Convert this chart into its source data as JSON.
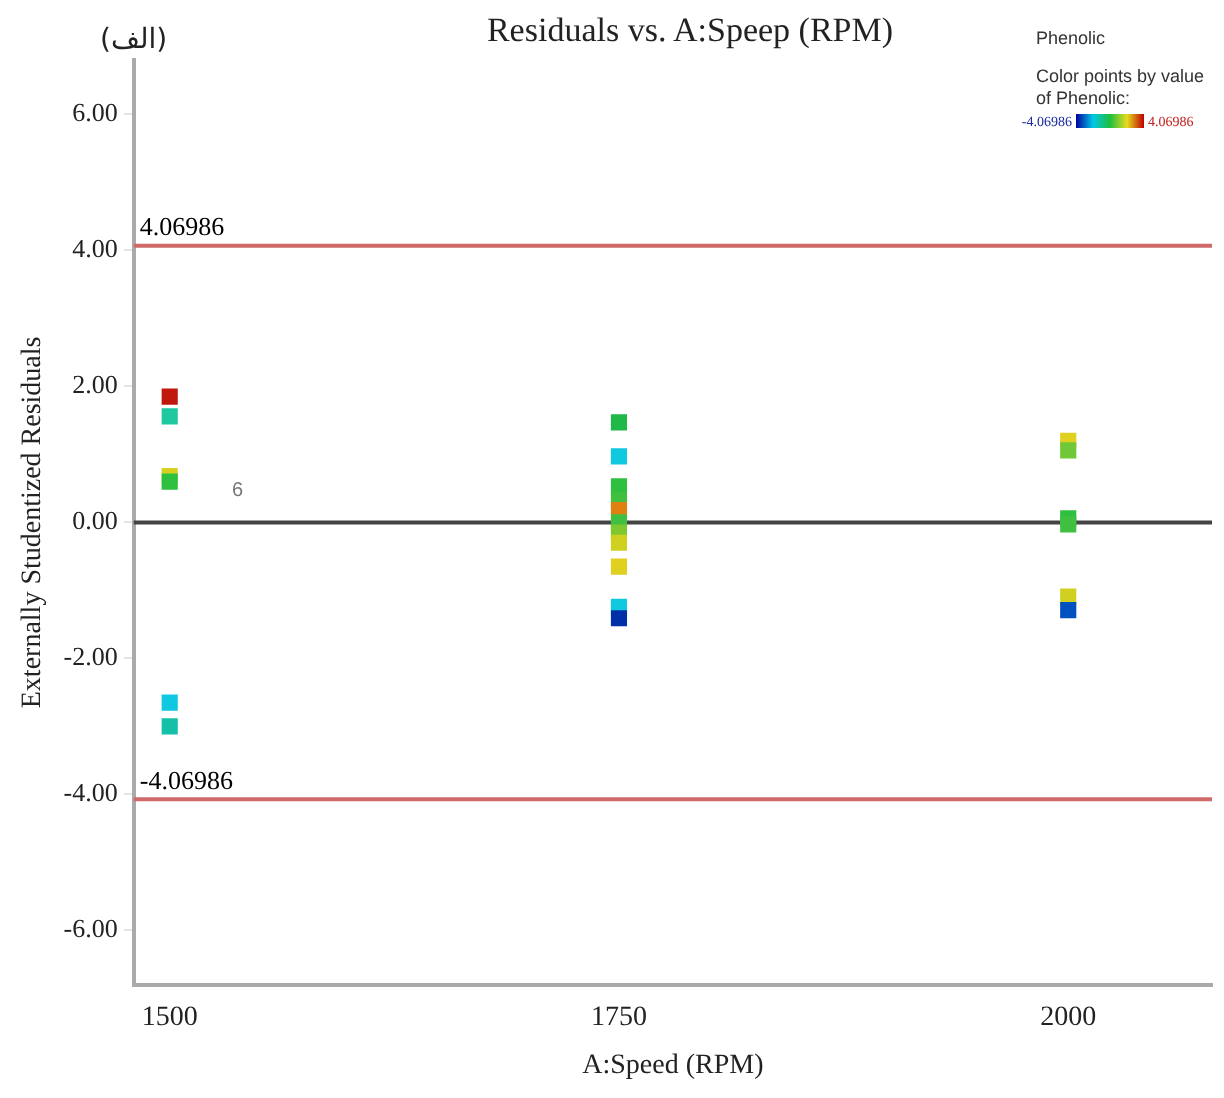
{
  "chart_data": {
    "type": "scatter",
    "title": "Residuals vs. A:Speep (RPM)",
    "subtitle": "Phenolic",
    "clabel": "Color points by value of Phenolic:",
    "xlabel": "A:Speed (RPM)",
    "ylabel": "Externally Studentized Residuals",
    "annotations": [
      "(الف)",
      "6",
      "-4.06986",
      "4.06986"
    ],
    "x": [
      1500,
      1500,
      1500,
      1500,
      1500,
      1500,
      1750,
      1750,
      1750,
      1750,
      1750,
      1750,
      1750,
      1750,
      1750,
      1750,
      1750,
      2000,
      2000,
      2000,
      2000,
      2000,
      2000
    ],
    "values": [
      1.85,
      1.56,
      0.68,
      0.6,
      -2.65,
      -3.0,
      1.47,
      0.97,
      0.53,
      0.32,
      0.18,
      0,
      -0.15,
      -0.3,
      -0.65,
      -1.24,
      -1.41,
      1.2,
      1.06,
      0.06,
      -0.03,
      -1.09,
      -1.29
    ],
    "colors": [
      "#c0180c",
      "#1ec8a0",
      "#d8d020",
      "#2ec040",
      "#10c8e0",
      "#14c0a8",
      "#20b848",
      "#10c8e0",
      "#30c040",
      "#40c040",
      "#e08010",
      "#40c040",
      "#80c830",
      "#d0d020",
      "#e0d020",
      "#10c8e0",
      "#0030a8",
      "#e0d020",
      "#70c838",
      "#30c040",
      "#40c040",
      "#d0d020",
      "#0050c0"
    ],
    "xlim": [
      1480,
      2080
    ],
    "xticks": [
      1500,
      1750,
      2000
    ],
    "ylim": [
      -6.8,
      6.8
    ],
    "yticks": [
      {
        "value": -6,
        "label": "-6.00"
      },
      {
        "value": -4,
        "label": "-4.00"
      },
      {
        "value": -2,
        "label": "-2.00"
      },
      {
        "value": 0,
        "label": "0.00"
      },
      {
        "value": 2,
        "label": "2.00"
      },
      {
        "value": 4,
        "label": "4.00"
      },
      {
        "value": 6,
        "label": "6.00"
      }
    ],
    "ref_lines": [
      {
        "axis": "y",
        "value": 4.06986,
        "label": "4.06986",
        "color": "#d06a6a"
      },
      {
        "axis": "y",
        "value": -4.06986,
        "label": "-4.06986",
        "color": "#d06a6a"
      },
      {
        "axis": "y",
        "value": 0,
        "color": "#444444"
      }
    ],
    "marker": "square",
    "grid": false,
    "legend": false
  }
}
